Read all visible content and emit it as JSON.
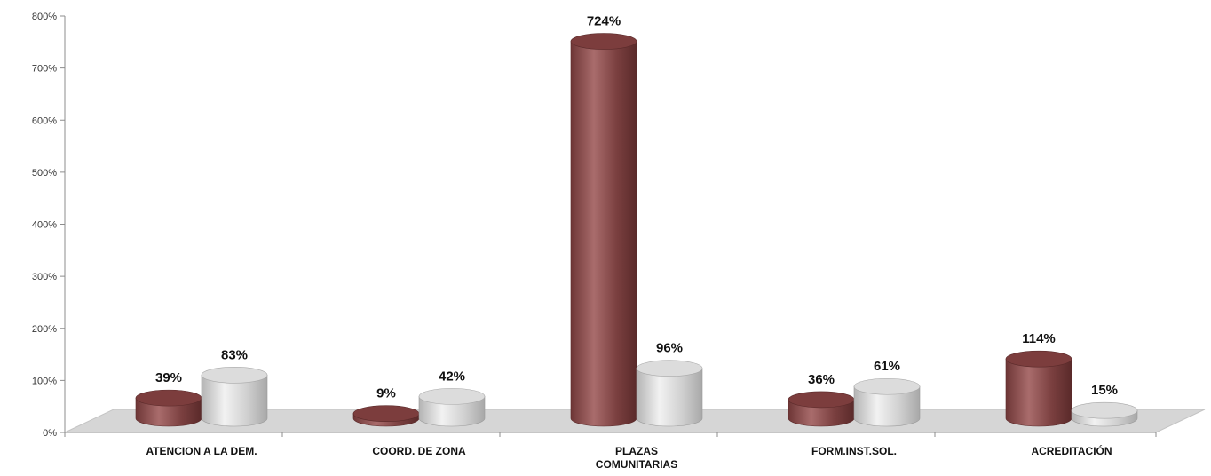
{
  "chart_data": {
    "type": "bar",
    "categories": [
      [
        "ATENCION A LA DEM."
      ],
      [
        "COORD. DE ZONA"
      ],
      [
        "PLAZAS",
        "COMUNITARIAS"
      ],
      [
        "FORM.INST.SOL."
      ],
      [
        "ACREDITACIÓN"
      ]
    ],
    "series": [
      {
        "values": [
          39,
          9,
          724,
          36,
          114
        ],
        "labels": [
          "39%",
          "9%",
          "724%",
          "36%",
          "114%"
        ],
        "color": "#8a4a4a"
      },
      {
        "values": [
          83,
          42,
          96,
          61,
          15
        ],
        "labels": [
          "83%",
          "42%",
          "96%",
          "61%",
          "15%"
        ],
        "color": "#d4d4d4"
      }
    ],
    "ylim": [
      0,
      800
    ],
    "yticks": [
      "0%",
      "100%",
      "200%",
      "300%",
      "400%",
      "500%",
      "600%",
      "700%",
      "800%"
    ],
    "grid": false,
    "legend": "none",
    "style": "3d-cylinder"
  }
}
